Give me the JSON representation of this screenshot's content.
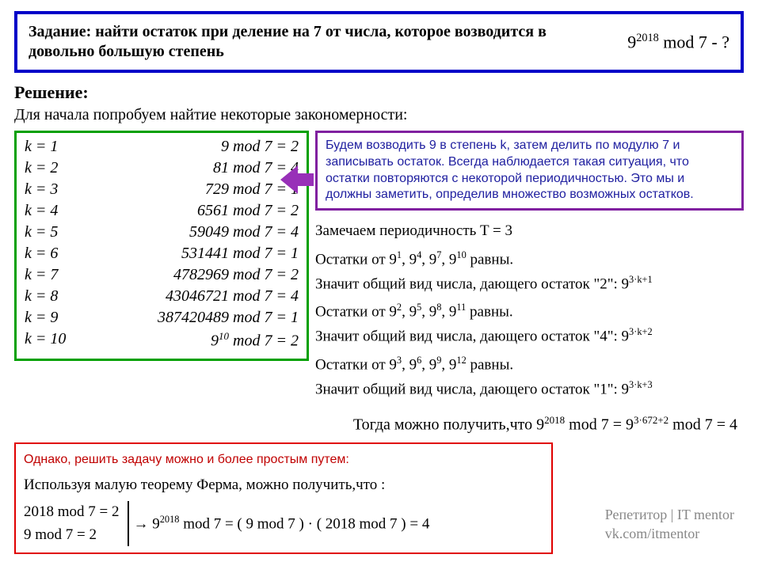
{
  "colors": {
    "blue_border": "#0000c8",
    "green_border": "#00a000",
    "purple_border": "#8020a0",
    "purple_text": "#2020a0",
    "arrow_fill": "#9830b8",
    "red_border": "#e00000",
    "red_text": "#c00000",
    "credit_gray": "#888888",
    "background": "#ffffff"
  },
  "task": {
    "text": "Задание: найти остаток при деление на 7 от числа, которое возводится в довольно большую степень",
    "formula_base": "9",
    "formula_exp": "2018",
    "formula_tail": " mod 7 - ?"
  },
  "solution_header": "Решение:",
  "intro": "Для начала попробуем найтие некоторые закономерности:",
  "table": {
    "rows": [
      {
        "k": "k = 1",
        "expr": "9 mod 7 = 2"
      },
      {
        "k": "k = 2",
        "expr": "81 mod 7 = 4"
      },
      {
        "k": "k = 3",
        "expr": "729 mod 7 = 1"
      },
      {
        "k": "k = 4",
        "expr": "6561 mod 7 = 2"
      },
      {
        "k": "k = 5",
        "expr": "59049  mod 7 = 4"
      },
      {
        "k": "k = 6",
        "expr": "531441 mod 7 = 1"
      },
      {
        "k": "k = 7",
        "expr": "4782969 mod 7 = 2"
      },
      {
        "k": "k = 8",
        "expr": "43046721 mod 7 = 4"
      },
      {
        "k": "k = 9",
        "expr": "387420489 mod 7 = 1"
      }
    ],
    "last_row_k": "k = 10",
    "last_row_base": "9",
    "last_row_exp": "10",
    "last_row_tail": "  mod 7 = 2"
  },
  "purple_text": "Будем возводить 9 в степень k, затем делить по модулю 7 и записывать остаток. Всегда наблюдается такая ситуация, что остатки повторяются с некоторой периодичностью. Это мы и должны заметить, определив множество возможных остатков.",
  "period_line": "Замечаем периодичность T = 3",
  "patterns": [
    {
      "line1_pre": "Остатки от 9",
      "exps": [
        "1",
        "4",
        "7",
        "10"
      ],
      "line1_post": " равны.",
      "line2_pre": "Значит общий вид числа, дающего остаток \"2\": 9",
      "line2_exp": "3·k+1"
    },
    {
      "line1_pre": "Остатки от 9",
      "exps": [
        "2",
        "5",
        "8",
        "11"
      ],
      "line1_post": " равны.",
      "line2_pre": "Значит общий вид числа, дающего остаток \"4\": 9",
      "line2_exp": "3·k+2"
    },
    {
      "line1_pre": "Остатки от 9",
      "exps": [
        "3",
        "6",
        "9",
        "12"
      ],
      "line1_post": " равны.",
      "line2_pre": "Значит общий вид числа, дающего остаток \"1\": 9",
      "line2_exp": "3·k+3"
    }
  ],
  "conclusion": {
    "pre": "Тогда можно получить,что   9",
    "exp1": "2018",
    "mid": "  mod  7  =  9",
    "exp2": "3·672+2",
    "post": "  mod  7  =  4"
  },
  "red": {
    "title": "Однако, решить задачу можно и более простым путем:",
    "fermat": "Используя малую теорему Ферма, можно получить,что :",
    "left_line1": "2018  mod  7  =  2",
    "left_line2": "9  mod  7  =  2",
    "arrow": "→ ",
    "right_pre": "9",
    "right_exp": "2018",
    "right_post": "  mod  7 = ( 9  mod  7 ) · ( 2018  mod  7 ) = 4"
  },
  "credit": {
    "line1": "Репетитор | IT mentor",
    "line2": "vk.com/itmentor"
  }
}
